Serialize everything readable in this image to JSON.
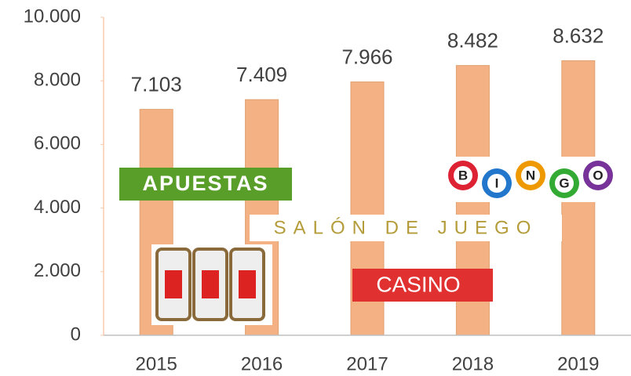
{
  "chart_data": {
    "type": "bar",
    "categories": [
      "2015",
      "2016",
      "2017",
      "2018",
      "2019"
    ],
    "values": [
      7103,
      7409,
      7966,
      8482,
      8632
    ],
    "value_labels": [
      "7.103",
      "7.409",
      "7.966",
      "8.482",
      "8.632"
    ],
    "color": "#f4b183",
    "ylim": [
      0,
      10000
    ],
    "yticks": [
      0,
      {
        "value": 2000,
        "label": "2.000"
      },
      {
        "value": 4000,
        "label": "4.000"
      },
      {
        "value": 6000,
        "label": "6.000"
      },
      {
        "value": 8000,
        "label": "8.000"
      },
      {
        "value": 10000,
        "label": "10.000"
      }
    ],
    "grid": false,
    "annotations": [
      "APUESTAS",
      "SALÓN DE JUEGO",
      "CASINO"
    ],
    "bingo_balls": [
      "B",
      "I",
      "N",
      "G",
      "O"
    ]
  }
}
